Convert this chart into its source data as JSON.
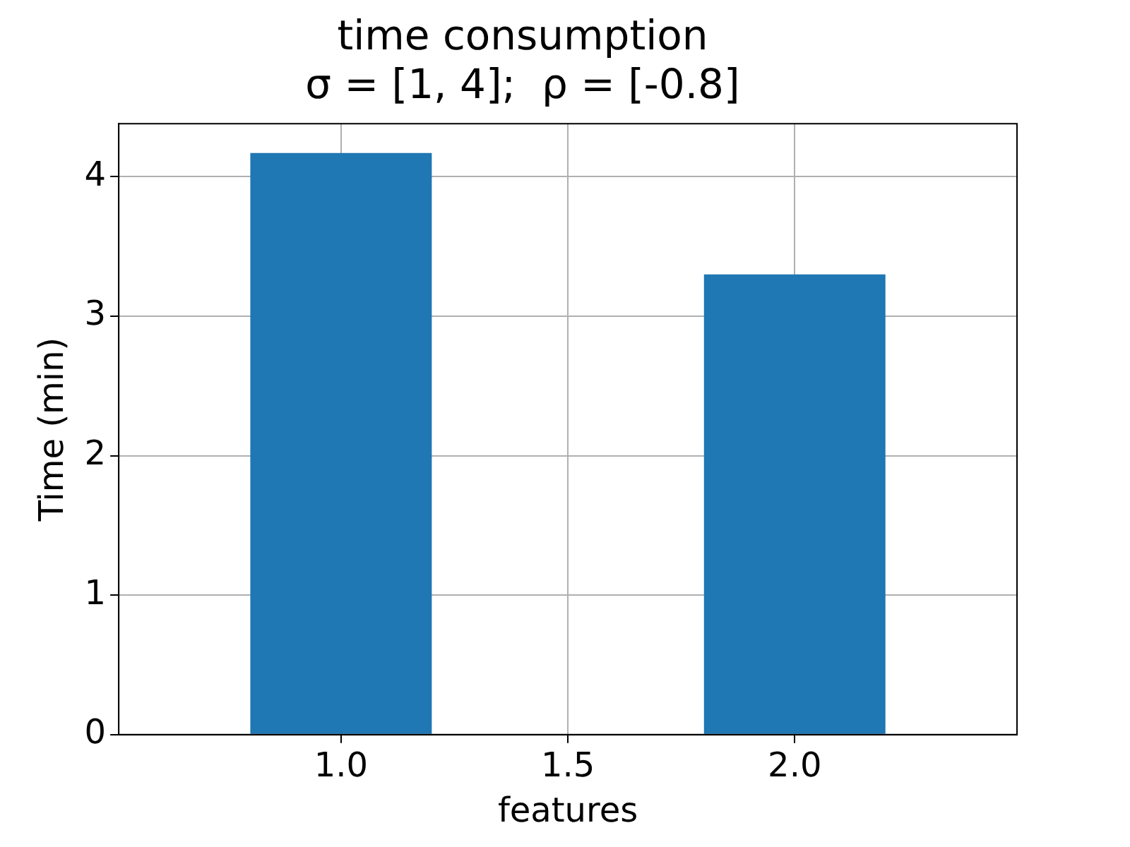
{
  "chart_data": {
    "type": "bar",
    "title": "time consumption\nσ = [1, 4];  ρ = [-0.8]",
    "xlabel": "features",
    "ylabel": "Time (min)",
    "x": [
      1,
      2
    ],
    "values": [
      4.17,
      3.3
    ],
    "color": "#1f77b4",
    "xlim": [
      0.51,
      2.49
    ],
    "xticks": [
      {
        "value": 1,
        "label": "1.0"
      },
      {
        "value": 1.5,
        "label": "1.5"
      },
      {
        "value": 2,
        "label": "2.0"
      }
    ],
    "ylim": [
      0,
      4.38
    ],
    "yticks": [
      0,
      1,
      2,
      3,
      4
    ],
    "grid": true
  }
}
